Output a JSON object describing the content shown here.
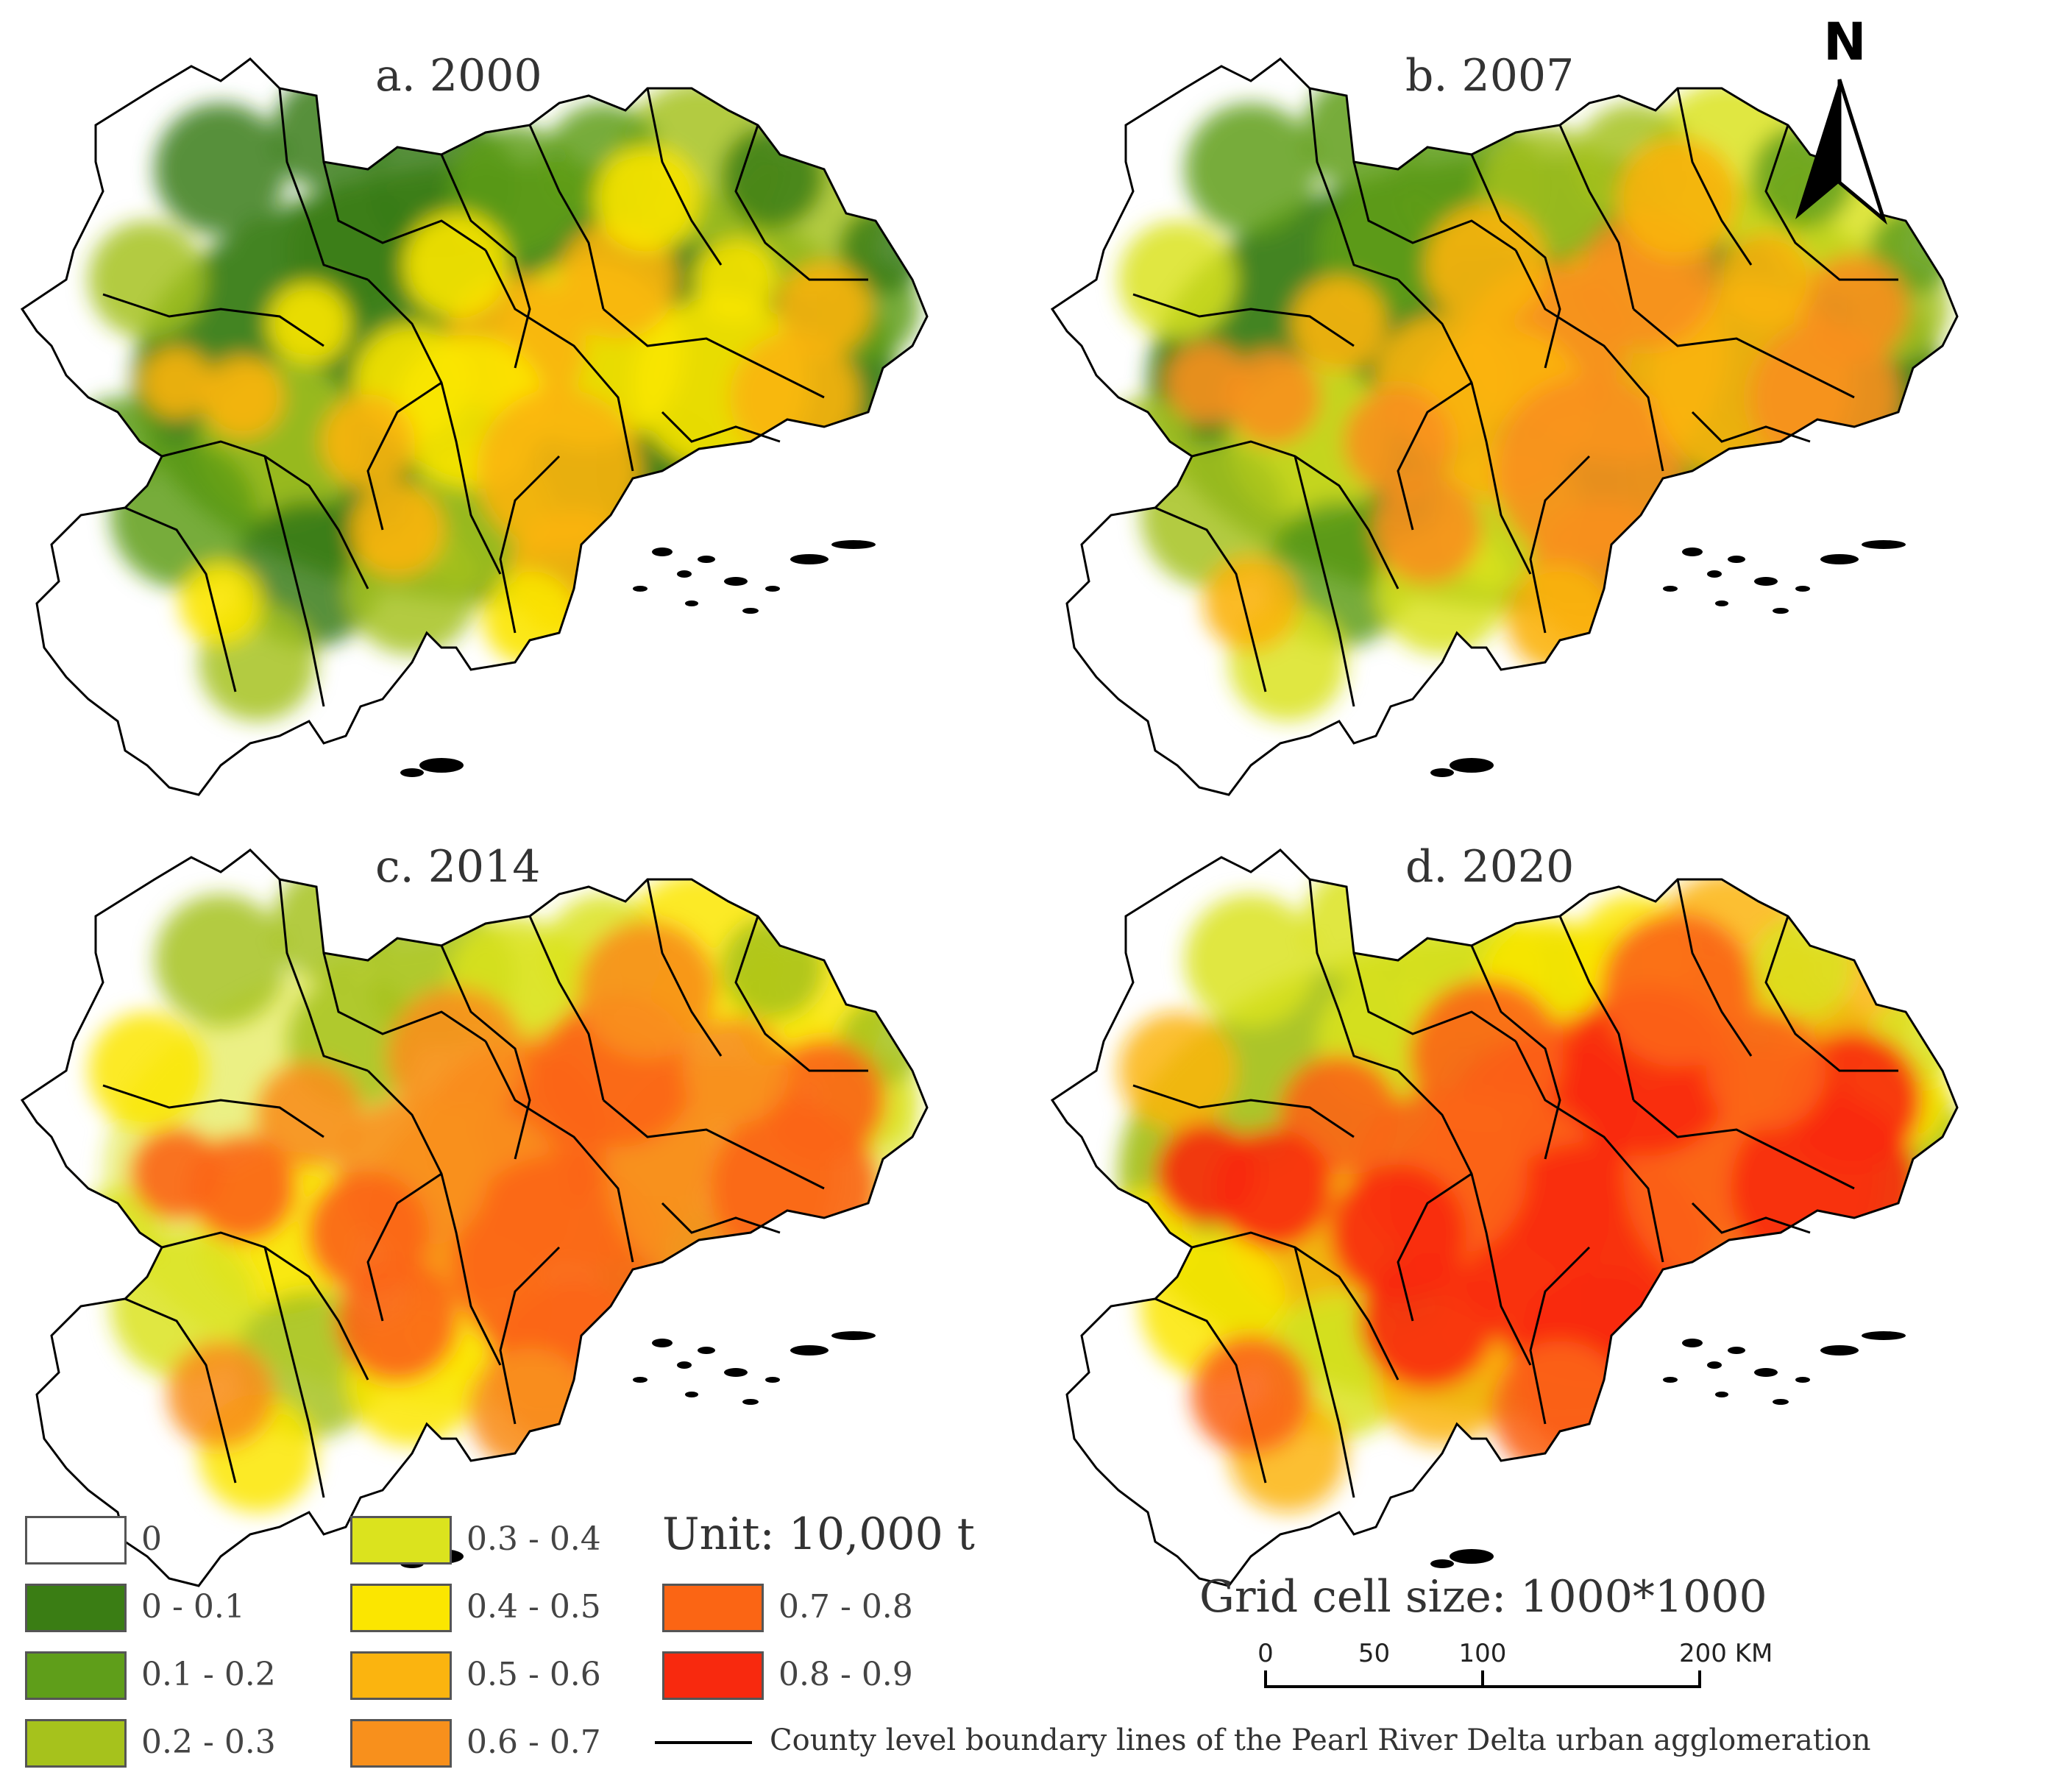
{
  "panels": [
    {
      "id": "a",
      "title": "a. 2000",
      "level": 0
    },
    {
      "id": "b",
      "title": "b. 2007",
      "level": 1
    },
    {
      "id": "c",
      "title": "c. 2014",
      "level": 2
    },
    {
      "id": "d",
      "title": "d. 2020",
      "level": 3
    }
  ],
  "north": {
    "label": "N"
  },
  "legend": {
    "classes": [
      {
        "label": "0",
        "color": "#ffffff"
      },
      {
        "label": "0 - 0.1",
        "color": "#3a7d14"
      },
      {
        "label": "0.1 - 0.2",
        "color": "#5f9e1a"
      },
      {
        "label": "0.2 - 0.3",
        "color": "#a6c21c"
      },
      {
        "label": "0.3 - 0.4",
        "color": "#dbe31e"
      },
      {
        "label": "0.4 - 0.5",
        "color": "#fbe600"
      },
      {
        "label": "0.5 - 0.6",
        "color": "#fbb40f"
      },
      {
        "label": "0.6 - 0.7",
        "color": "#f8901c"
      },
      {
        "label": "0.7 - 0.8",
        "color": "#fb6514"
      },
      {
        "label": "0.8 - 0.9",
        "color": "#f8290e"
      }
    ],
    "boundary_label": "County level boundary lines of the Pearl River Delta urban agglomeration"
  },
  "unit": "Unit: 10,000 t",
  "grid": "Grid cell size: 1000*1000",
  "scale": {
    "ticks": [
      "0",
      "50",
      "100",
      "200 KM"
    ],
    "values": [
      0,
      50,
      100,
      200
    ]
  }
}
